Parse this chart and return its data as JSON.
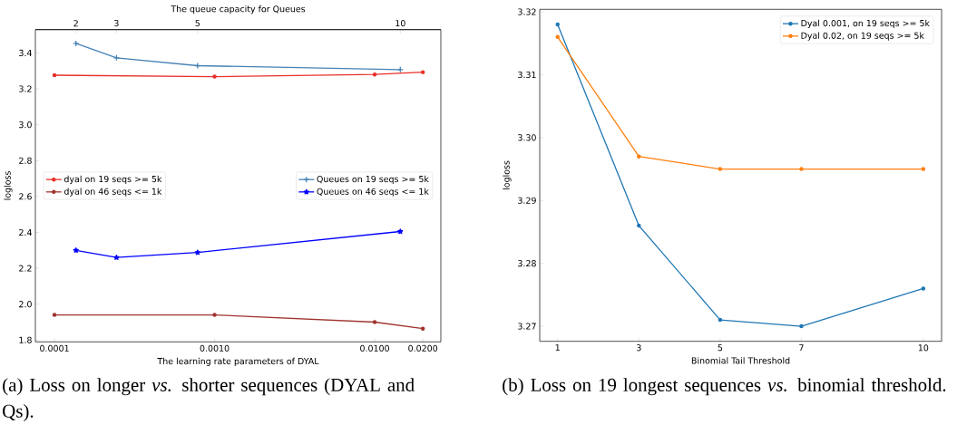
{
  "chart_data": [
    {
      "type": "line",
      "xlabel": "The learning rate parameters of DYAL",
      "x2label": "The queue capacity for Queues",
      "ylabel": "logloss",
      "log": "x",
      "xlim": [
        7.6e-05,
        0.0259
      ],
      "xticks": [
        {
          "value": 0.0001,
          "label": "0.0001"
        },
        {
          "value": 0.001,
          "label": "0.0010"
        },
        {
          "value": 0.01,
          "label": "0.0100"
        },
        {
          "value": 0.02,
          "label": "0.0200"
        }
      ],
      "x2lim": [
        1,
        11
      ],
      "x2ticks": [
        2,
        3,
        5,
        10
      ],
      "ylim": [
        1.79,
        3.53
      ],
      "yticks": [
        {
          "value": 1.8,
          "label": "1.8"
        },
        {
          "value": 2.0,
          "label": "2.0"
        },
        {
          "value": 2.2,
          "label": "2.2"
        },
        {
          "value": 2.4,
          "label": "2.4"
        },
        {
          "value": 2.6,
          "label": "2.6"
        },
        {
          "value": 2.8,
          "label": "2.8"
        },
        {
          "value": 3.0,
          "label": "3.0"
        },
        {
          "value": 3.2,
          "label": "3.2"
        },
        {
          "value": 3.4,
          "label": "3.4"
        }
      ],
      "legend": "left",
      "series": [
        {
          "name": "dyal on 19 seqs >= 5k",
          "color": "#e8302a",
          "marker": "circle",
          "x": [
            0.0001,
            0.001,
            0.01,
            0.02
          ],
          "values": [
            3.276,
            3.268,
            3.28,
            3.293
          ]
        },
        {
          "name": "dyal on 46 seqs <= 1k",
          "color": "#a0342f",
          "marker": "circle",
          "x": [
            0.0001,
            0.001,
            0.01,
            0.02
          ],
          "values": [
            1.94,
            1.94,
            1.9,
            1.864
          ]
        },
        {
          "name": "Queues on 19 seqs >= 5k",
          "color": "#4682b4",
          "marker": "cross",
          "axis": "x2",
          "x": [
            2,
            3,
            5,
            10
          ],
          "values": [
            3.453,
            3.373,
            3.329,
            3.307
          ]
        },
        {
          "name": "Queues on 46 seqs <= 1k",
          "color": "#0000ff",
          "marker": "star",
          "axis": "x2",
          "x": [
            2,
            3,
            5,
            10
          ],
          "values": [
            2.3,
            2.26,
            2.288,
            2.405
          ]
        }
      ],
      "annotations": [
        "(a) Loss on longer *vs.* shorter sequences (DYAL and Qs)."
      ]
    },
    {
      "type": "line",
      "xlabel": "Binomial Tail Threshold",
      "ylabel": "logloss",
      "xlim": [
        0.56,
        10.45
      ],
      "xticks": [
        1,
        3,
        5,
        7,
        10
      ],
      "ylim": [
        3.2676,
        3.3204
      ],
      "yticks": [
        {
          "value": 3.27,
          "label": "3.27"
        },
        {
          "value": 3.28,
          "label": "3.28"
        },
        {
          "value": 3.29,
          "label": "3.29"
        },
        {
          "value": 3.3,
          "label": "3.30"
        },
        {
          "value": 3.31,
          "label": "3.31"
        },
        {
          "value": 3.32,
          "label": "3.32"
        }
      ],
      "legend": "top right",
      "series": [
        {
          "name": "Dyal 0.001, on 19 seqs >= 5k",
          "color": "#1f77b4",
          "marker": "circle",
          "x": [
            1,
            3,
            5,
            7,
            10
          ],
          "values": [
            3.318,
            3.286,
            3.271,
            3.27,
            3.276
          ]
        },
        {
          "name": "Dyal 0.02, on 19 seqs >= 5k",
          "color": "#ff7f0e",
          "marker": "circle",
          "x": [
            1,
            3,
            5,
            7,
            10
          ],
          "values": [
            3.316,
            3.297,
            3.295,
            3.295,
            3.295
          ]
        }
      ],
      "annotations": [
        "(b) Loss on 19 longest sequences *vs.* binomial threshold."
      ]
    }
  ]
}
